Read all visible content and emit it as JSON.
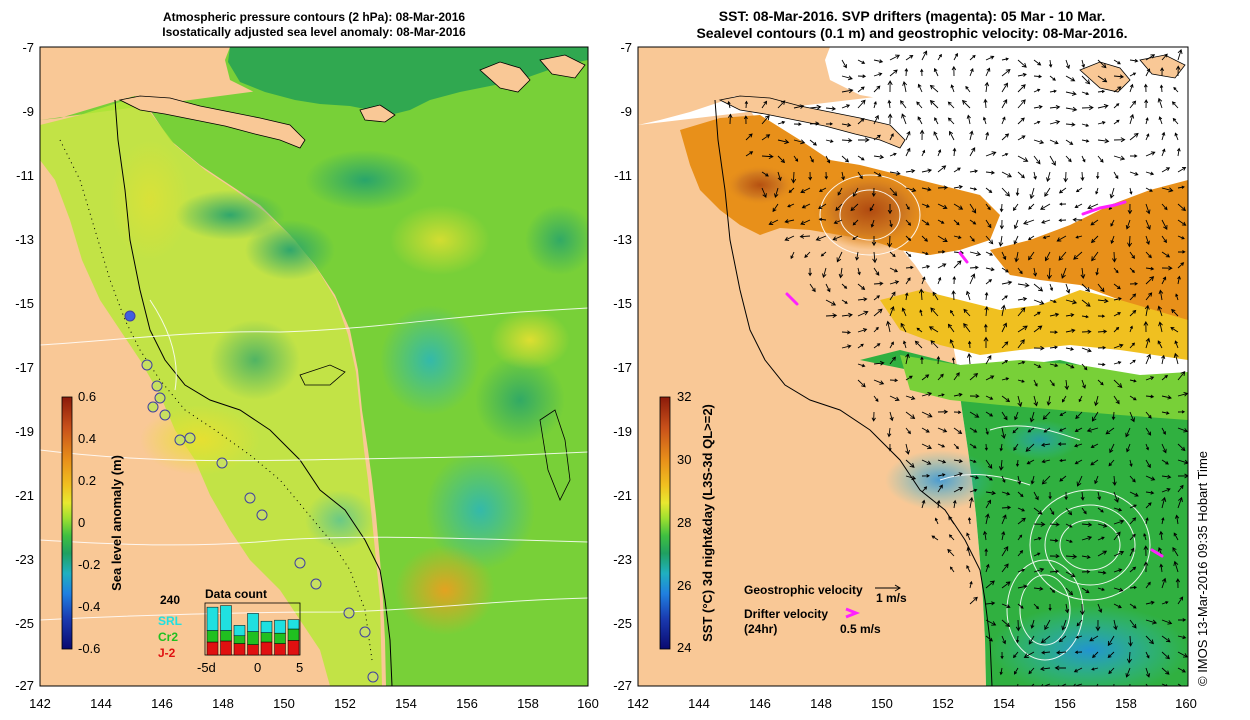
{
  "left_panel": {
    "title_line1": "Atmospheric pressure contours (2 hPa): 08-Mar-2016",
    "title_line2": "Isostatically adjusted sea level anomaly: 08-Mar-2016",
    "lat_labels": [
      "-7",
      "-9",
      "-11",
      "-13",
      "-15",
      "-17",
      "-19",
      "-21",
      "-23",
      "-25",
      "-27"
    ],
    "lon_labels": [
      "142",
      "144",
      "146",
      "148",
      "150",
      "152",
      "154",
      "156",
      "158",
      "160"
    ],
    "colorbar": {
      "label": "Sea level anomaly (m)",
      "ticks": [
        "0.6",
        "0.4",
        "0.2",
        "0",
        "-0.2",
        "-0.4",
        "-0.6"
      ],
      "colors": [
        "#8b1a0a",
        "#c8501a",
        "#e8901a",
        "#f0c020",
        "#e8e830",
        "#a0e030",
        "#40c040",
        "#20a060",
        "#20b0c0",
        "#2080e0",
        "#1a3ab0",
        "#0a0a70"
      ]
    },
    "data_count": {
      "title": "Data count",
      "ymax": "240",
      "series": [
        {
          "name": "SRL",
          "color": "#20e0e0"
        },
        {
          "name": "Cr2",
          "color": "#20c020"
        },
        {
          "name": "J-2",
          "color": "#e01010"
        }
      ],
      "x_labels": [
        "-5d",
        "0",
        "5"
      ],
      "bars": [
        {
          "srl": 0.45,
          "cr2": 0.22,
          "j2": 0.25
        },
        {
          "srl": 0.48,
          "cr2": 0.2,
          "j2": 0.27
        },
        {
          "srl": 0.2,
          "cr2": 0.15,
          "j2": 0.22
        },
        {
          "srl": 0.35,
          "cr2": 0.25,
          "j2": 0.2
        },
        {
          "srl": 0.22,
          "cr2": 0.18,
          "j2": 0.25
        },
        {
          "srl": 0.25,
          "cr2": 0.2,
          "j2": 0.22
        },
        {
          "srl": 0.18,
          "cr2": 0.22,
          "j2": 0.28
        }
      ]
    }
  },
  "right_panel": {
    "title_line1": "SST: 08-Mar-2016. SVP drifters (magenta): 05 Mar - 10 Mar.",
    "title_line2": "Sealevel contours (0.1 m) and geostrophic velocity: 08-Mar-2016.",
    "lat_labels": [
      "-7",
      "-9",
      "-11",
      "-13",
      "-15",
      "-17",
      "-19",
      "-21",
      "-23",
      "-25",
      "-27"
    ],
    "lon_labels": [
      "142",
      "144",
      "146",
      "148",
      "150",
      "152",
      "154",
      "156",
      "158",
      "160"
    ],
    "colorbar": {
      "label": "SST (°C) 3d night&day (L3S-3d QL>=2)",
      "ticks": [
        "32",
        "30",
        "28",
        "26",
        "24"
      ],
      "colors": [
        "#8b1a0a",
        "#c8501a",
        "#e8901a",
        "#f0c020",
        "#e8e830",
        "#a0e030",
        "#40c040",
        "#20a060",
        "#20b0c0",
        "#2080e0",
        "#1a3ab0",
        "#0a0a70"
      ]
    },
    "legend": {
      "geo_label": "Geostrophic velocity",
      "geo_scale": "1 m/s",
      "drifter_label_1": "Drifter velocity",
      "drifter_label_2": "(24hr)",
      "drifter_scale": "0.5 m/s"
    }
  },
  "credit": "© IMOS 13-Mar-2016 09:35 Hobart Time",
  "colors": {
    "land": "#f9c896",
    "sea_base": "#78d038",
    "sst_white": "#ffffff"
  }
}
